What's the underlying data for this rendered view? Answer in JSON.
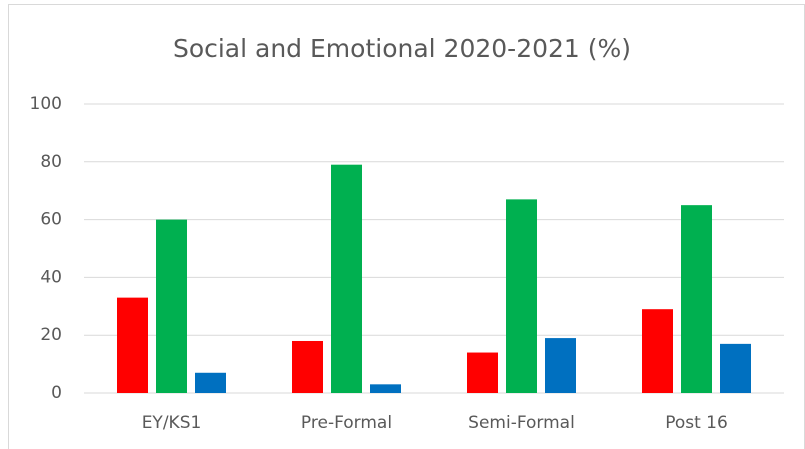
{
  "chart_data": {
    "type": "bar",
    "title": "Social and Emotional 2020-2021 (%)",
    "categories": [
      "EY/KS1",
      "Pre-Formal",
      "Semi-Formal",
      "Post 16"
    ],
    "series": [
      {
        "color": "#ff0000",
        "values": [
          33,
          18,
          14,
          29
        ]
      },
      {
        "color": "#00b050",
        "values": [
          60,
          79,
          67,
          65
        ]
      },
      {
        "color": "#0070c0",
        "values": [
          7,
          3,
          19,
          17
        ]
      }
    ],
    "ylim": [
      0,
      100
    ],
    "yticks": [
      0,
      20,
      40,
      60,
      80,
      100
    ],
    "grid": true
  }
}
